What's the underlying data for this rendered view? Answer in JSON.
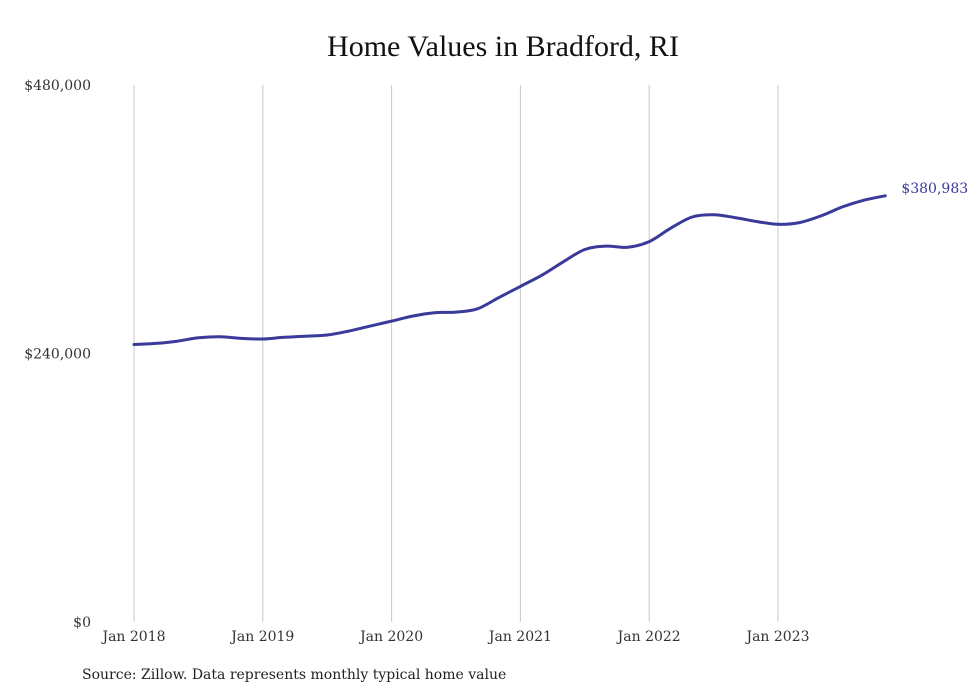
{
  "chart_data": {
    "type": "line",
    "title": "Home Values in Bradford, RI",
    "xlabel": "",
    "ylabel": "",
    "ylim": [
      0,
      480000
    ],
    "y_ticks": [
      "$0",
      "$240,000",
      "$480,000"
    ],
    "y_tick_values": [
      0,
      240000,
      480000
    ],
    "x_ticks": [
      "Jan 2018",
      "Jan 2019",
      "Jan 2020",
      "Jan 2021",
      "Jan 2022",
      "Jan 2023"
    ],
    "grid": "vertical at x ticks",
    "series": [
      {
        "color": "#3a3a9a",
        "end_label": "$380,983",
        "points": [
          [
            "2018-01",
            248000
          ],
          [
            "2018-03",
            249000
          ],
          [
            "2018-05",
            251000
          ],
          [
            "2018-07",
            254000
          ],
          [
            "2018-09",
            255000
          ],
          [
            "2018-11",
            253500
          ],
          [
            "2019-01",
            253000
          ],
          [
            "2019-03",
            254500
          ],
          [
            "2019-05",
            255500
          ],
          [
            "2019-07",
            256500
          ],
          [
            "2019-09",
            260000
          ],
          [
            "2019-11",
            264500
          ],
          [
            "2020-01",
            269000
          ],
          [
            "2020-03",
            273500
          ],
          [
            "2020-05",
            276500
          ],
          [
            "2020-07",
            277000
          ],
          [
            "2020-09",
            280000
          ],
          [
            "2020-11",
            290000
          ],
          [
            "2021-01",
            300000
          ],
          [
            "2021-03",
            310000
          ],
          [
            "2021-05",
            322000
          ],
          [
            "2021-07",
            333000
          ],
          [
            "2021-09",
            336000
          ],
          [
            "2021-11",
            335000
          ],
          [
            "2022-01",
            340000
          ],
          [
            "2022-03",
            352000
          ],
          [
            "2022-05",
            362000
          ],
          [
            "2022-07",
            364000
          ],
          [
            "2022-09",
            361500
          ],
          [
            "2022-11",
            358000
          ],
          [
            "2023-01",
            355500
          ],
          [
            "2023-03",
            357000
          ],
          [
            "2023-05",
            363000
          ],
          [
            "2023-07",
            371000
          ],
          [
            "2023-09",
            377000
          ],
          [
            "2023-11",
            380983
          ]
        ]
      }
    ]
  },
  "source_note": "Source: Zillow. Data represents monthly typical home value"
}
